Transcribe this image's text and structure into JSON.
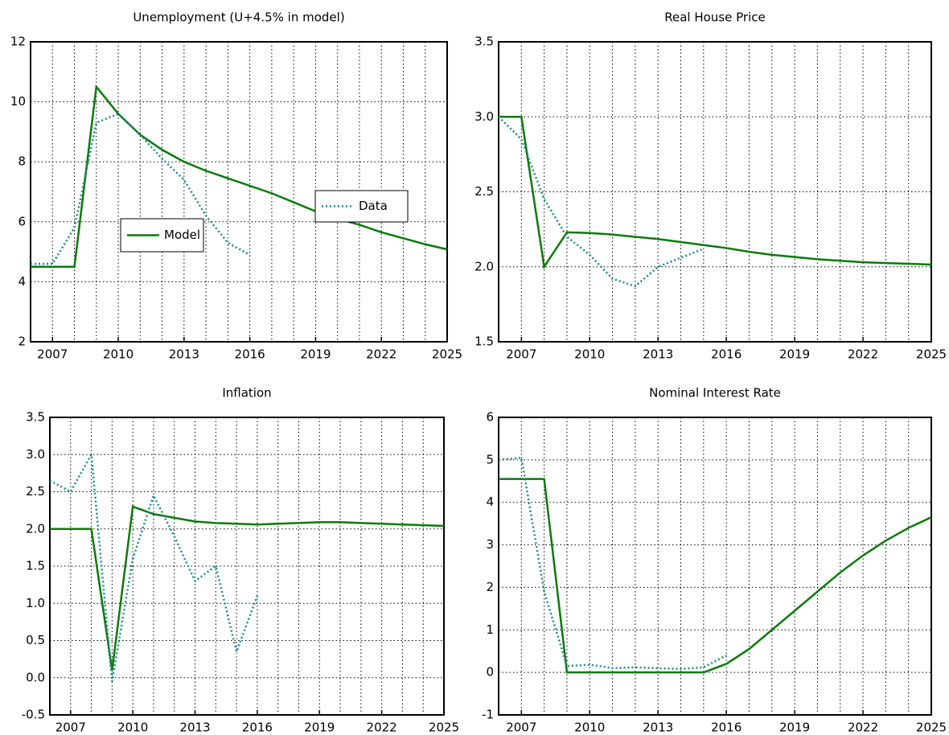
{
  "chart_data": [
    {
      "type": "line",
      "title": "Unemployment (U+4.5% in model)",
      "x": [
        2006,
        2007,
        2008,
        2009,
        2010,
        2011,
        2012,
        2013,
        2014,
        2015,
        2016,
        2017,
        2018,
        2019,
        2020,
        2021,
        2022,
        2023,
        2024,
        2025
      ],
      "xlim": [
        2006,
        2025
      ],
      "xticks": [
        2007,
        2010,
        2013,
        2016,
        2019,
        2022,
        2025
      ],
      "x_grid_step": 1,
      "ylim": [
        2,
        12
      ],
      "yticks": [
        2,
        4,
        6,
        8,
        10,
        12
      ],
      "grid": true,
      "legend": true,
      "series": [
        {
          "name": "Model",
          "color": "#0a7a0a",
          "style": "solid",
          "values": [
            4.5,
            4.5,
            4.5,
            10.5,
            9.6,
            8.9,
            8.4,
            8.0,
            7.7,
            7.45,
            7.2,
            6.95,
            6.65,
            6.35,
            6.1,
            5.9,
            5.65,
            5.45,
            5.25,
            5.08
          ]
        },
        {
          "name": "Data",
          "color": "#1a8a8a",
          "style": "dotted",
          "values": [
            4.6,
            4.6,
            5.8,
            9.3,
            9.6,
            8.9,
            8.1,
            7.4,
            6.2,
            5.3,
            4.9,
            null,
            null,
            null,
            null,
            null,
            null,
            null,
            null,
            null
          ]
        }
      ]
    },
    {
      "type": "line",
      "title": "Real House Price",
      "x": [
        2006,
        2007,
        2008,
        2009,
        2010,
        2011,
        2012,
        2013,
        2014,
        2015,
        2016,
        2017,
        2018,
        2019,
        2020,
        2021,
        2022,
        2023,
        2024,
        2025
      ],
      "xlim": [
        2006,
        2025
      ],
      "xticks": [
        2007,
        2010,
        2013,
        2016,
        2019,
        2022,
        2025
      ],
      "x_grid_step": 1,
      "ylim": [
        1.5,
        3.5
      ],
      "yticks": [
        1.5,
        {
          "value": 2,
          "label": "2.0"
        },
        2.5,
        {
          "value": 3,
          "label": "3.0"
        },
        3.5
      ],
      "grid": true,
      "legend": false,
      "series": [
        {
          "name": "Model",
          "color": "#0a7a0a",
          "style": "solid",
          "values": [
            3.0,
            3.0,
            2.0,
            2.23,
            2.225,
            2.215,
            2.2,
            2.185,
            2.165,
            2.145,
            2.125,
            2.1,
            2.08,
            2.065,
            2.05,
            2.04,
            2.03,
            2.025,
            2.02,
            2.015
          ]
        },
        {
          "name": "Data",
          "color": "#1a8a8a",
          "style": "dotted",
          "values": [
            3.0,
            2.85,
            2.45,
            2.2,
            2.08,
            1.92,
            1.87,
            2.0,
            2.06,
            2.12,
            null,
            null,
            null,
            null,
            null,
            null,
            null,
            null,
            null,
            null
          ]
        }
      ]
    },
    {
      "type": "line",
      "title": "Inflation",
      "x": [
        2006,
        2007,
        2008,
        2009,
        2010,
        2011,
        2012,
        2013,
        2014,
        2015,
        2016,
        2017,
        2018,
        2019,
        2020,
        2021,
        2022,
        2023,
        2024,
        2025
      ],
      "xlim": [
        2006,
        2025
      ],
      "xticks": [
        2007,
        2010,
        2013,
        2016,
        2019,
        2022,
        2025
      ],
      "x_grid_step": 1,
      "ylim": [
        -0.5,
        3.5
      ],
      "yticks": [
        -0.5,
        {
          "value": 0,
          "label": "0.0"
        },
        0.5,
        {
          "value": 1,
          "label": "1.0"
        },
        1.5,
        {
          "value": 2,
          "label": "2.0"
        },
        2.5,
        {
          "value": 3,
          "label": "3.0"
        },
        3.5
      ],
      "grid": true,
      "legend": false,
      "series": [
        {
          "name": "Model",
          "color": "#0a7a0a",
          "style": "solid",
          "values": [
            2.0,
            2.0,
            2.0,
            0.1,
            2.3,
            2.2,
            2.15,
            2.1,
            2.08,
            2.07,
            2.06,
            2.07,
            2.08,
            2.09,
            2.09,
            2.08,
            2.07,
            2.06,
            2.05,
            2.04
          ]
        },
        {
          "name": "Data",
          "color": "#1a8a8a",
          "style": "dotted",
          "values": [
            2.65,
            2.5,
            3.0,
            -0.05,
            1.6,
            2.45,
            1.9,
            1.3,
            1.5,
            0.35,
            1.1,
            null,
            null,
            null,
            null,
            null,
            null,
            null,
            null,
            null
          ]
        }
      ]
    },
    {
      "type": "line",
      "title": "Nominal Interest Rate",
      "x": [
        2006,
        2007,
        2008,
        2009,
        2010,
        2011,
        2012,
        2013,
        2014,
        2015,
        2016,
        2017,
        2018,
        2019,
        2020,
        2021,
        2022,
        2023,
        2024,
        2025
      ],
      "xlim": [
        2006,
        2025
      ],
      "xticks": [
        2007,
        2010,
        2013,
        2016,
        2019,
        2022,
        2025
      ],
      "x_grid_step": 1,
      "ylim": [
        -1,
        6
      ],
      "yticks": [
        -1,
        0,
        1,
        2,
        3,
        4,
        5,
        6
      ],
      "grid": true,
      "legend": false,
      "series": [
        {
          "name": "Model",
          "color": "#0a7a0a",
          "style": "solid",
          "values": [
            4.55,
            4.55,
            4.55,
            0,
            0,
            0,
            0,
            0,
            0,
            0,
            0.2,
            0.55,
            1.0,
            1.45,
            1.9,
            2.35,
            2.75,
            3.1,
            3.4,
            3.65
          ]
        },
        {
          "name": "Data",
          "color": "#1a8a8a",
          "style": "dotted",
          "values": [
            5.0,
            5.05,
            1.9,
            0.15,
            0.18,
            0.1,
            0.12,
            0.1,
            0.08,
            0.12,
            0.4,
            null,
            null,
            null,
            null,
            null,
            null,
            null,
            null,
            null
          ]
        }
      ]
    }
  ]
}
